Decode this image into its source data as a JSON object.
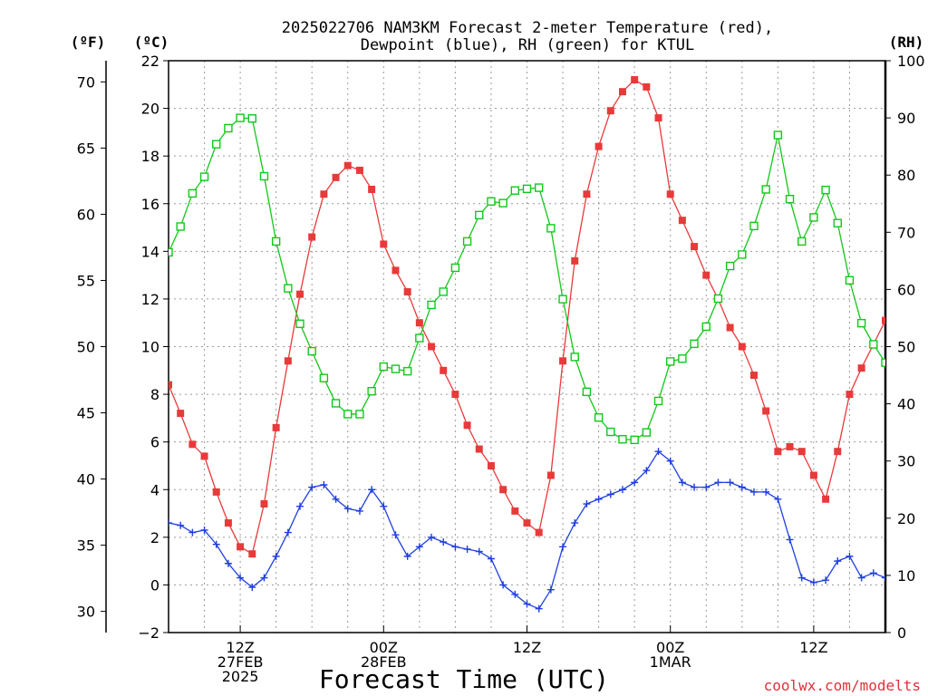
{
  "title_line1": "2025022706 NAM3KM Forecast 2-meter Temperature (red),",
  "title_line2": "Dewpoint (blue), RH (green) for KTUL",
  "unit_f": "(ºF)",
  "unit_c": "(ºC)",
  "unit_rh": "(RH)",
  "xlabel": "Forecast Time (UTC)",
  "credit": "coolwx.com/modelts",
  "colors": {
    "temperature": "#e83a3a",
    "dewpoint": "#1f3fe0",
    "rh": "#12c81a"
  },
  "chart_data": {
    "type": "line",
    "x_unit": "forecast hour from 2025-02-27 06Z",
    "x": [
      0,
      1,
      2,
      3,
      4,
      5,
      6,
      7,
      8,
      9,
      10,
      11,
      12,
      13,
      14,
      15,
      16,
      17,
      18,
      19,
      20,
      21,
      22,
      23,
      24,
      25,
      26,
      27,
      28,
      29,
      30,
      31,
      32,
      33,
      34,
      35,
      36,
      37,
      38,
      39,
      40,
      41,
      42,
      43,
      44,
      45,
      46,
      47,
      48,
      49,
      50,
      51,
      52,
      53,
      54,
      55,
      56,
      57,
      58,
      59,
      60
    ],
    "xlim": [
      0,
      60
    ],
    "x_ticks": [
      {
        "x": 6,
        "lines": [
          "12Z",
          "27FEB",
          "2025"
        ]
      },
      {
        "x": 18,
        "lines": [
          "00Z",
          "28FEB"
        ]
      },
      {
        "x": 30,
        "lines": [
          "12Z"
        ]
      },
      {
        "x": 42,
        "lines": [
          "00Z",
          "1MAR"
        ]
      },
      {
        "x": 54,
        "lines": [
          "12Z"
        ]
      }
    ],
    "y_left_c": {
      "label": "(ºC)",
      "lim": [
        -2,
        22
      ],
      "ticks": [
        -2,
        0,
        2,
        4,
        6,
        8,
        10,
        12,
        14,
        16,
        18,
        20,
        22
      ]
    },
    "y_left_f": {
      "label": "(ºF)",
      "lim": [
        28.4,
        71.6
      ],
      "ticks": [
        30,
        35,
        40,
        45,
        50,
        55,
        60,
        65,
        70
      ]
    },
    "y_right_rh": {
      "label": "(RH)",
      "lim": [
        0,
        100
      ],
      "ticks": [
        0,
        10,
        20,
        30,
        40,
        50,
        60,
        70,
        80,
        90,
        100
      ]
    },
    "grid": true,
    "series": [
      {
        "name": "Temperature",
        "axis": "c",
        "marker": "filled-square",
        "values": [
          8.4,
          7.2,
          5.9,
          5.4,
          3.9,
          2.6,
          1.6,
          1.3,
          3.4,
          6.6,
          9.4,
          12.2,
          14.6,
          16.4,
          17.1,
          17.6,
          17.4,
          16.6,
          14.3,
          13.2,
          12.3,
          11.0,
          10.0,
          9.0,
          8.0,
          6.7,
          5.7,
          5.0,
          4.0,
          3.1,
          2.6,
          2.2,
          4.6,
          9.4,
          13.6,
          16.4,
          18.4,
          19.9,
          20.7,
          21.2,
          20.9,
          19.6,
          16.4,
          15.3,
          14.2,
          13.0,
          12.0,
          10.8,
          10.0,
          8.8,
          7.3,
          5.6,
          5.8,
          5.6,
          4.6,
          3.6,
          5.6,
          8.0,
          9.1,
          10.1,
          11.1
        ]
      },
      {
        "name": "Dewpoint",
        "axis": "c",
        "marker": "plus",
        "values": [
          2.6,
          2.5,
          2.2,
          2.3,
          1.7,
          0.9,
          0.3,
          -0.1,
          0.3,
          1.2,
          2.2,
          3.3,
          4.1,
          4.2,
          3.6,
          3.2,
          3.1,
          4.0,
          3.3,
          2.1,
          1.2,
          1.6,
          2.0,
          1.8,
          1.6,
          1.5,
          1.4,
          1.1,
          0.0,
          -0.4,
          -0.8,
          -1.0,
          -0.2,
          1.6,
          2.6,
          3.4,
          3.6,
          3.8,
          4.0,
          4.3,
          4.8,
          5.6,
          5.2,
          4.3,
          4.1,
          4.1,
          4.3,
          4.3,
          4.1,
          3.9,
          3.9,
          3.6,
          1.9,
          0.3,
          0.1,
          0.2,
          1.0,
          1.2,
          0.3,
          0.5,
          0.3
        ]
      },
      {
        "name": "RH",
        "axis": "rh",
        "marker": "open-square",
        "values": [
          66.5,
          71,
          76.8,
          79.7,
          85.4,
          88.2,
          90,
          89.9,
          79.8,
          68.4,
          60.2,
          54,
          49.2,
          44.5,
          40.1,
          38.2,
          38.2,
          42.2,
          46.5,
          46.1,
          45.7,
          51.5,
          57.3,
          59.6,
          63.8,
          68.4,
          73,
          75.4,
          75.1,
          77.3,
          77.6,
          77.8,
          70.7,
          58.3,
          48.2,
          42.1,
          37.6,
          35.1,
          33.8,
          33.7,
          35,
          40.5,
          47.4,
          47.9,
          50.5,
          53.5,
          58.4,
          64.1,
          66.1,
          71.1,
          77.5,
          87,
          75.8,
          68.4,
          72.6,
          77.4,
          71.6,
          61.6,
          54.1,
          50.4,
          47.2
        ]
      }
    ]
  }
}
